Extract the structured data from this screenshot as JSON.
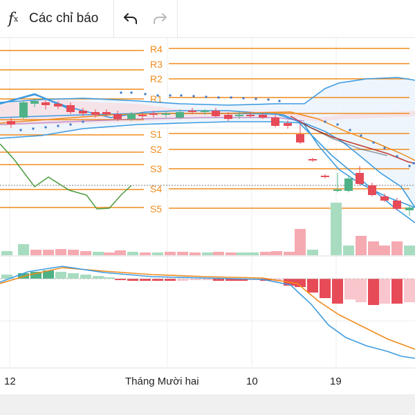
{
  "toolbar": {
    "indicators_label": "Các chỉ báo",
    "fx_icon": "function-fx-icon",
    "undo_icon": "undo-arrow-icon",
    "redo_icon": "redo-arrow-icon"
  },
  "chart": {
    "pivot_labels": [
      "R4",
      "R3",
      "R2",
      "R1",
      "S1",
      "S2",
      "S3",
      "S4",
      "S5"
    ],
    "x_labels": [
      "12",
      "Tháng Mười hai",
      "10",
      "19"
    ],
    "colors": {
      "pivot": "#ef8b1c",
      "up": "#4fb286",
      "down": "#e64b57",
      "band": "#3d9be0",
      "osc": "#4a9a3c",
      "bg": "#ffffff"
    }
  }
}
